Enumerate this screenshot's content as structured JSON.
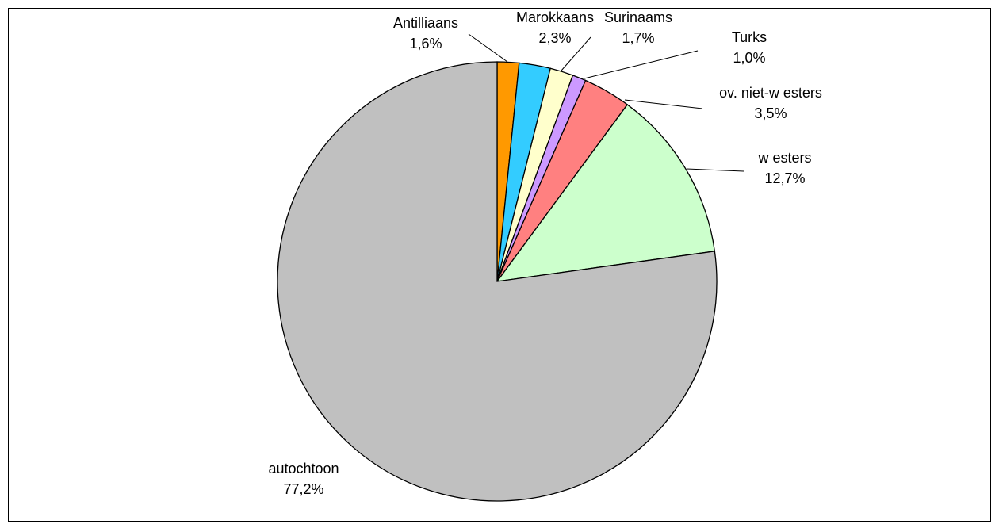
{
  "chart_data": {
    "type": "pie",
    "title": "",
    "start_angle_deg": 0,
    "direction": "clockwise",
    "slices": [
      {
        "label": "Antilliaans",
        "value": 1.6,
        "value_label": "1,6%",
        "color": "#FF9900"
      },
      {
        "label": "Marokkaans",
        "value": 2.3,
        "value_label": "2,3%",
        "color": "#33CCFF"
      },
      {
        "label": "Surinaams",
        "value": 1.7,
        "value_label": "1,7%",
        "color": "#FFFFCC"
      },
      {
        "label": "Turks",
        "value": 1.0,
        "value_label": "1,0%",
        "color": "#CC99FF"
      },
      {
        "label": "ov. niet-w esters",
        "value": 3.5,
        "value_label": "3,5%",
        "color": "#FF8080"
      },
      {
        "label": "w esters",
        "value": 12.7,
        "value_label": "12,7%",
        "color": "#CCFFCC"
      },
      {
        "label": "autochtoon",
        "value": 77.2,
        "value_label": "77,2%",
        "color": "#C0C0C0"
      }
    ]
  }
}
